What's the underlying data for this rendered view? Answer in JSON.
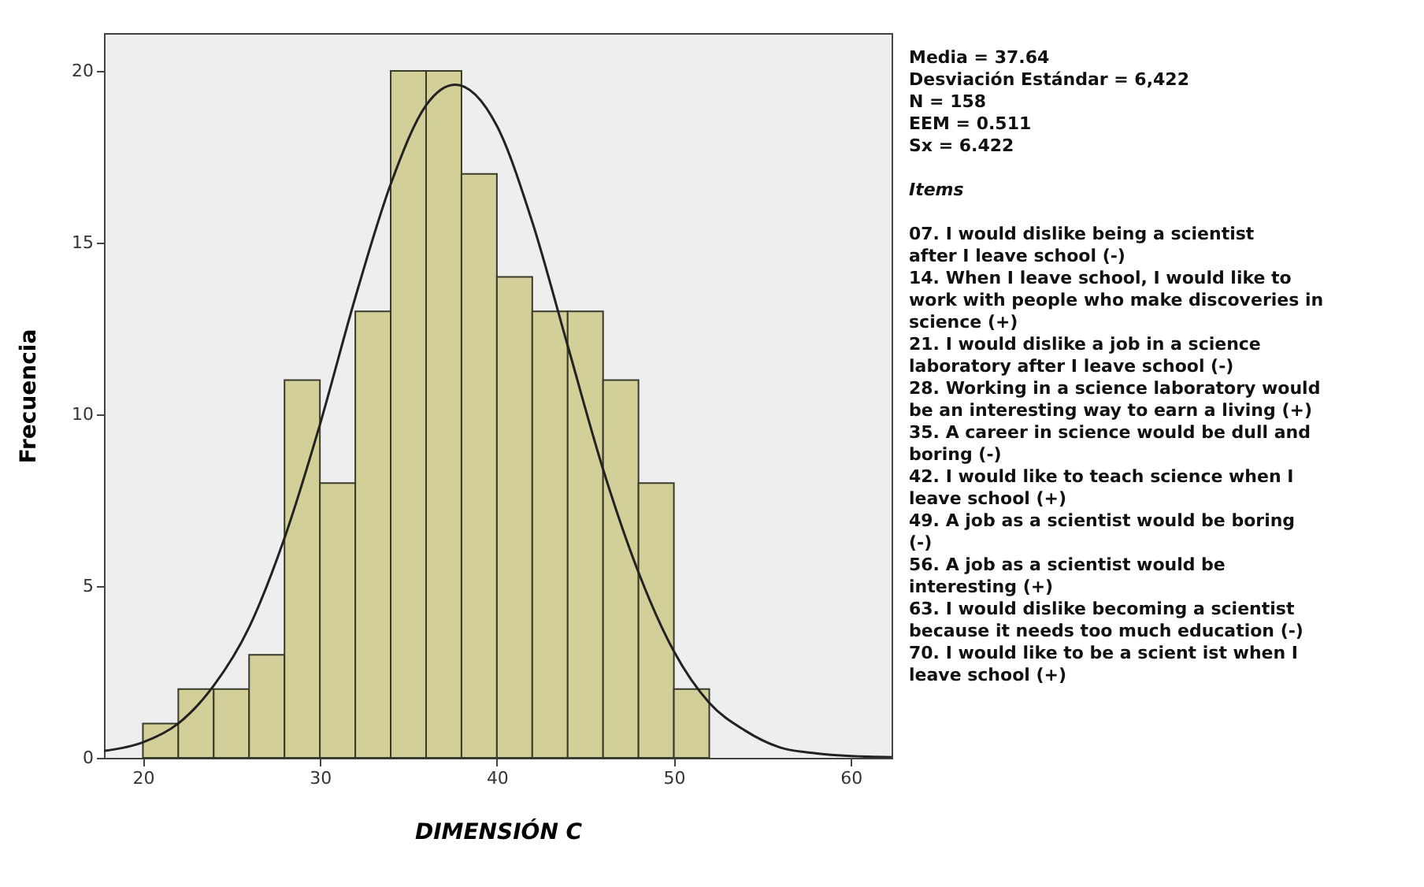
{
  "chart_data": {
    "type": "histogram",
    "xlabel": "DIMENSIÓN C",
    "ylabel": "Frecuencia",
    "xlim": [
      17.8,
      62.3
    ],
    "ylim": [
      0,
      21.1
    ],
    "xticks": [
      20,
      30,
      40,
      50,
      60
    ],
    "yticks": [
      0,
      5,
      10,
      15,
      20
    ],
    "grid": false,
    "series": [
      {
        "color": "#d3cf98",
        "bins": [
          20,
          22,
          24,
          26,
          28,
          30,
          32,
          34,
          36,
          38,
          40,
          42,
          44,
          46,
          48,
          50,
          52
        ],
        "values": [
          1,
          2,
          2,
          3,
          11,
          8,
          13,
          20,
          20,
          17,
          14,
          13,
          13,
          11,
          8,
          2
        ]
      },
      {
        "type": "line",
        "color": "#222222",
        "x": [
          17.8,
          20,
          22,
          24,
          26,
          28,
          30,
          32,
          34,
          36,
          37.64,
          40,
          42,
          44,
          46,
          48,
          50,
          52,
          54,
          56,
          58,
          60,
          62.3
        ],
        "values": [
          0.2,
          0.45,
          1.0,
          2.1,
          3.8,
          6.4,
          9.7,
          13.4,
          16.7,
          19.0,
          19.6,
          18.4,
          15.6,
          12.0,
          8.4,
          5.4,
          3.1,
          1.6,
          0.8,
          0.3,
          0.13,
          0.05,
          0.02
        ]
      }
    ],
    "annotations": [
      "Media = 37.64",
      "Desviación Estándar = 6,422",
      "N = 158",
      "EEM = 0.511",
      "Sx = 6.422",
      "Items",
      "07. I would dislike being a scientist after I leave school (-)",
      "14. When I leave school, I would like to work with people who make discoveries in science (+)",
      "21. I would dislike a job in a science laboratory after I leave school (-)",
      "28. Working in a science laboratory would be an interesting way to earn a living (+)",
      "35. A career in science would be dull and boring (-)",
      "42. I would like to teach science when I leave school  (+)",
      "49. A job as a scientist would be boring (-)",
      "56. A job as a scientist would be interesting (+)",
      "63. I would dislike becoming a scientist because it needs too much education (-)",
      "70. I would like to be a scient ist when I leave school (+)"
    ]
  }
}
